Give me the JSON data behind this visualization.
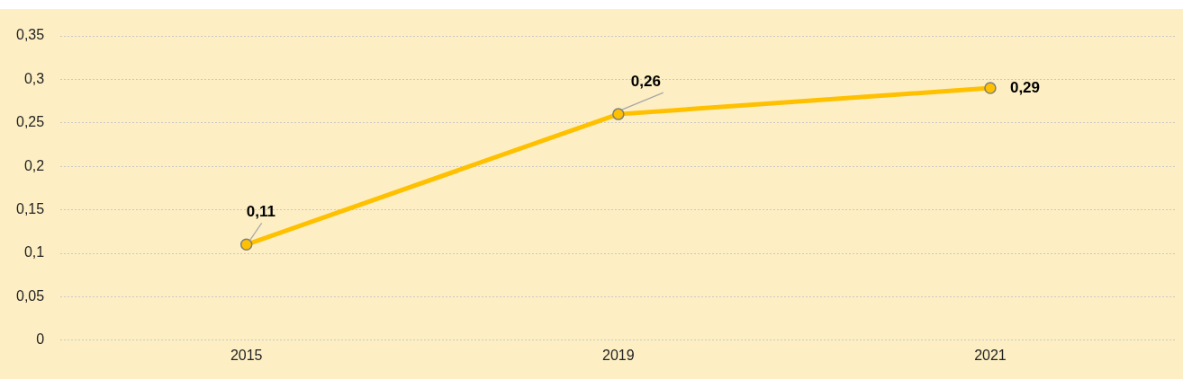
{
  "chart_data": {
    "type": "line",
    "categories": [
      "2015",
      "2019",
      "2021"
    ],
    "series": [
      {
        "color": "#ffc000",
        "values": [
          0.11,
          0.26,
          0.29
        ],
        "value_labels": [
          "0,11",
          "0,26",
          "0,29"
        ]
      }
    ],
    "ylim": [
      0,
      0.35
    ],
    "yticks": [
      {
        "value": 0,
        "label": "0"
      },
      {
        "value": 0.05,
        "label": "0,05"
      },
      {
        "value": 0.1,
        "label": "0,1"
      },
      {
        "value": 0.15,
        "label": "0,15"
      },
      {
        "value": 0.2,
        "label": "0,2"
      },
      {
        "value": 0.25,
        "label": "0,25"
      },
      {
        "value": 0.3,
        "label": "0,3"
      },
      {
        "value": 0.35,
        "label": "0,35"
      }
    ],
    "grid": "y",
    "marker": "circle",
    "line_style": "solid",
    "legend": false
  }
}
